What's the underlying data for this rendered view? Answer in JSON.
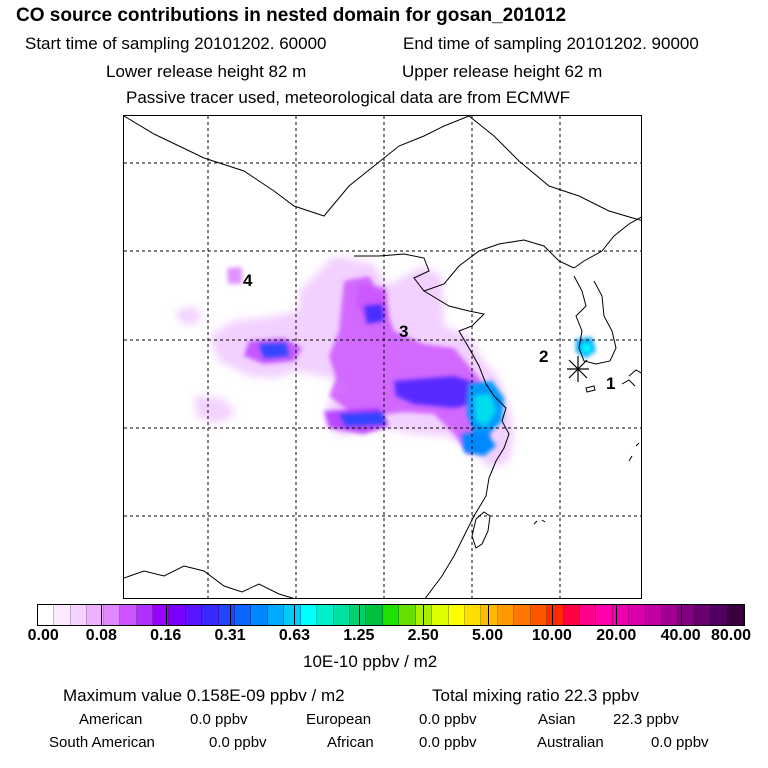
{
  "header": {
    "title": "CO  source contributions in nested domain for gosan_201012",
    "start_time": "Start time of sampling 20101202. 60000",
    "end_time": "End time of sampling 20101202. 90000",
    "lower_height": "Lower release height   82 m",
    "upper_height": "Upper release height   62 m",
    "tracer_note": "Passive tracer used, meteorological data are from ECMWF"
  },
  "chart_data": {
    "type": "heatmap",
    "title": "CO  source contributions in nested domain for gosan_201012",
    "colorbar": {
      "units": "10E-10 ppbv / m2",
      "ticks": [
        "0.00",
        "0.08",
        "0.16",
        "0.31",
        "0.63",
        "1.25",
        "2.50",
        "5.00",
        "10.00",
        "20.00",
        "40.00",
        "80.00"
      ],
      "colors": [
        "#ffffff",
        "#fce8ff",
        "#f6d0ff",
        "#eeb0ff",
        "#dd88ff",
        "#cc55ff",
        "#b030ff",
        "#9a00ff",
        "#7a00ff",
        "#5a14ff",
        "#3a28ff",
        "#2244ff",
        "#0a66ff",
        "#0088ff",
        "#00aaff",
        "#00ccff",
        "#00ffff",
        "#00f0cc",
        "#00e0a0",
        "#00d070",
        "#00c040",
        "#20e000",
        "#66e000",
        "#aaee00",
        "#ddff00",
        "#ffff00",
        "#ffdd00",
        "#ffbb00",
        "#ff9900",
        "#ff7700",
        "#ff5500",
        "#ff2a00",
        "#ff0044",
        "#ff0088",
        "#ff00aa",
        "#ee00b0",
        "#d800aa",
        "#c000a0",
        "#a00090",
        "#800080",
        "#6a0070",
        "#500060",
        "#3a0040"
      ]
    },
    "station_labels": [
      "1",
      "2",
      "3",
      "4"
    ],
    "receptor": "gosan"
  },
  "stats": {
    "max_value": "Maximum value  0.158E-09 ppbv / m2",
    "total_mixing": "Total mixing ratio       22.3 ppbv",
    "american": "American",
    "american_val": "0.0 ppbv",
    "european": "European",
    "european_val": "0.0 ppbv",
    "asian": "Asian",
    "asian_val": "22.3 ppbv",
    "south_american": "South American",
    "south_american_val": "0.0 ppbv",
    "african": "African",
    "african_val": "0.0 ppbv",
    "australian": "Australian",
    "australian_val": "0.0 ppbv"
  }
}
